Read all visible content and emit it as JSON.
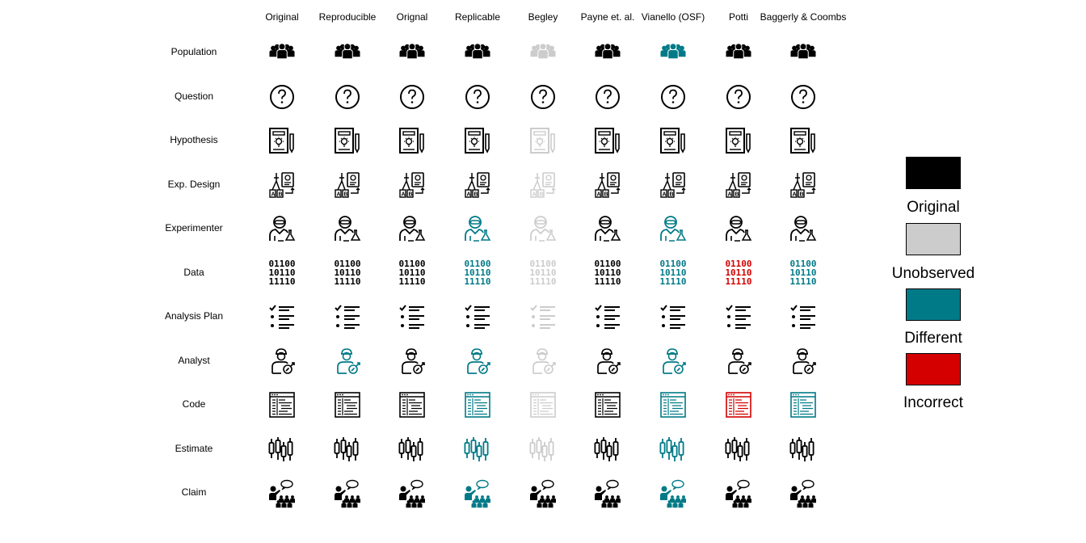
{
  "columns": [
    "Original",
    "Reproducible",
    "Orignal",
    "Replicable",
    "Begley",
    "Payne et. al.",
    "Vianello (OSF)",
    "Potti",
    "Baggerly & Coombs"
  ],
  "rows": [
    {
      "label": "Population",
      "icon": "population-icon",
      "status": [
        "original",
        "original",
        "original",
        "original",
        "unobserved",
        "original",
        "different",
        "original",
        "original"
      ]
    },
    {
      "label": "Question",
      "icon": "question-icon",
      "status": [
        "original",
        "original",
        "original",
        "original",
        "original",
        "original",
        "original",
        "original",
        "original"
      ]
    },
    {
      "label": "Hypothesis",
      "icon": "hypothesis-icon",
      "status": [
        "original",
        "original",
        "original",
        "original",
        "unobserved",
        "original",
        "original",
        "original",
        "original"
      ]
    },
    {
      "label": "Exp. Design",
      "icon": "experiment-design-icon",
      "status": [
        "original",
        "original",
        "original",
        "original",
        "unobserved",
        "original",
        "original",
        "original",
        "original"
      ]
    },
    {
      "label": "Experimenter",
      "icon": "experimenter-icon",
      "status": [
        "original",
        "original",
        "original",
        "different",
        "unobserved",
        "original",
        "different",
        "original",
        "original"
      ]
    },
    {
      "label": "Data",
      "icon": "binary-data-icon",
      "data_text": [
        "01100",
        "10110",
        "11110"
      ],
      "status": [
        "original",
        "original",
        "original",
        "different",
        "unobserved",
        "original",
        "different",
        "incorrect",
        "different"
      ]
    },
    {
      "label": "Analysis Plan",
      "icon": "checklist-icon",
      "status": [
        "original",
        "original",
        "original",
        "original",
        "unobserved",
        "original",
        "original",
        "original",
        "original"
      ]
    },
    {
      "label": "Analyst",
      "icon": "analyst-icon",
      "status": [
        "original",
        "different",
        "original",
        "different",
        "unobserved",
        "original",
        "different",
        "original",
        "original"
      ]
    },
    {
      "label": "Code",
      "icon": "code-window-icon",
      "status": [
        "original",
        "original",
        "original",
        "different",
        "unobserved",
        "original",
        "different",
        "incorrect",
        "different"
      ]
    },
    {
      "label": "Estimate",
      "icon": "candlestick-icon",
      "status": [
        "original",
        "original",
        "original",
        "different",
        "unobserved",
        "original",
        "different",
        "original",
        "original"
      ]
    },
    {
      "label": "Claim",
      "icon": "presenter-icon",
      "status": [
        "original",
        "original",
        "original",
        "different",
        "original",
        "original",
        "different",
        "original",
        "original"
      ]
    }
  ],
  "legend": [
    {
      "key": "original",
      "label": "Original",
      "color": "#000000"
    },
    {
      "key": "unobserved",
      "label": "Unobserved",
      "color": "#cccccc"
    },
    {
      "key": "different",
      "label": "Different",
      "color": "#007a87"
    },
    {
      "key": "incorrect",
      "label": "Incorrect",
      "color": "#d40000"
    }
  ]
}
